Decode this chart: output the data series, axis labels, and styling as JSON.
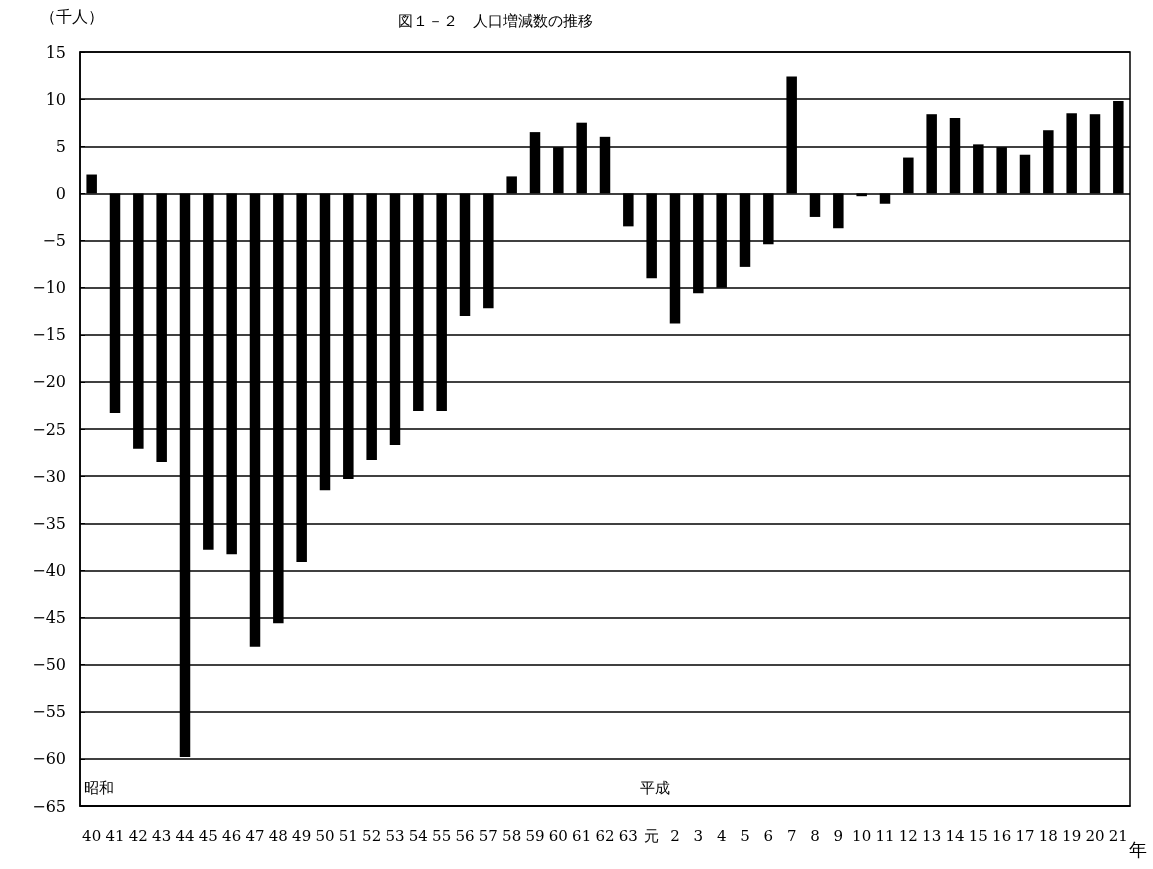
{
  "chart_data": {
    "type": "bar",
    "title": "図１－２　人口増減数の推移",
    "xlabel": "年",
    "ylabel": "（千人）",
    "categories": [
      "40",
      "41",
      "42",
      "43",
      "44",
      "45",
      "46",
      "47",
      "48",
      "49",
      "50",
      "51",
      "52",
      "53",
      "54",
      "55",
      "56",
      "57",
      "58",
      "59",
      "60",
      "61",
      "62",
      "63",
      "元",
      "2",
      "3",
      "4",
      "5",
      "6",
      "7",
      "8",
      "9",
      "10",
      "11",
      "12",
      "13",
      "14",
      "15",
      "16",
      "17",
      "18",
      "19",
      "20",
      "21"
    ],
    "values": [
      2.0,
      -23.3,
      -27.1,
      -28.5,
      -59.8,
      -37.8,
      -38.3,
      -48.1,
      -45.6,
      -39.1,
      -31.5,
      -30.3,
      -28.3,
      -26.7,
      -23.1,
      -23.1,
      -13.0,
      -12.2,
      1.8,
      6.5,
      4.9,
      7.5,
      6.0,
      -3.5,
      -9.0,
      -13.8,
      -10.6,
      -10.0,
      -7.8,
      -5.4,
      12.4,
      -2.5,
      -3.7,
      -0.3,
      -1.1,
      3.8,
      8.4,
      8.0,
      5.2,
      4.9,
      4.1,
      6.7,
      8.5,
      8.4,
      9.8
    ],
    "color": "#000000",
    "ylim": [
      -65,
      15
    ],
    "yticks": [
      -65,
      -60,
      -55,
      -50,
      -45,
      -40,
      -35,
      -30,
      -25,
      -20,
      -15,
      -10,
      -5,
      0,
      5,
      10,
      15
    ],
    "grid": "y",
    "annotations": [
      "昭和",
      "平成"
    ]
  }
}
